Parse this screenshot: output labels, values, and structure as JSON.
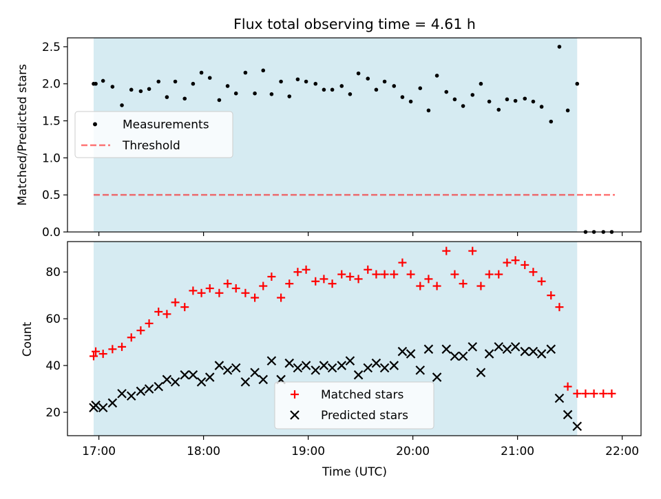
{
  "chart_data": [
    {
      "type": "scatter",
      "title": "Flux total observing time = 4.61 h",
      "xlabel": "",
      "ylabel": "Matched/Predicted stars",
      "ylim": [
        0,
        2.62
      ],
      "yticks": [
        0.0,
        0.5,
        1.0,
        1.5,
        2.0,
        2.5
      ],
      "ytick_labels": [
        "0.0",
        "0.5",
        "1.0",
        "1.5",
        "2.0",
        "2.5"
      ],
      "legend_position": "center-left",
      "shaded_interval": {
        "start_hour": 16.95,
        "end_hour": 21.57,
        "color": "#add8e6"
      },
      "threshold": {
        "name": "Threshold",
        "value": 0.5,
        "x_start_hour": 16.95,
        "x_end_hour": 21.93,
        "color": "#ff0000",
        "style": "dashed"
      },
      "series": [
        {
          "name": "Measurements",
          "color": "#000000",
          "marker": "dot",
          "x": [
            16.95,
            16.97,
            17.04,
            17.13,
            17.22,
            17.31,
            17.4,
            17.48,
            17.57,
            17.65,
            17.73,
            17.82,
            17.9,
            17.98,
            18.06,
            18.15,
            18.23,
            18.31,
            18.4,
            18.49,
            18.57,
            18.65,
            18.74,
            18.82,
            18.9,
            18.98,
            19.07,
            19.15,
            19.23,
            19.32,
            19.4,
            19.48,
            19.57,
            19.65,
            19.73,
            19.82,
            19.9,
            19.98,
            20.07,
            20.15,
            20.23,
            20.32,
            20.4,
            20.48,
            20.57,
            20.65,
            20.73,
            20.82,
            20.9,
            20.98,
            21.07,
            21.15,
            21.23,
            21.32,
            21.4,
            21.48,
            21.57,
            21.65,
            21.73,
            21.82,
            21.9
          ],
          "y": [
            2.0,
            2.0,
            2.04,
            1.96,
            1.71,
            1.92,
            1.9,
            1.93,
            2.03,
            1.82,
            2.03,
            1.8,
            2.0,
            2.15,
            2.08,
            1.78,
            1.97,
            1.87,
            2.15,
            1.87,
            2.18,
            1.86,
            2.03,
            1.83,
            2.06,
            2.03,
            2.0,
            1.92,
            1.92,
            1.97,
            1.86,
            2.14,
            2.07,
            1.92,
            2.03,
            1.97,
            1.82,
            1.76,
            1.94,
            1.64,
            2.11,
            1.89,
            1.79,
            1.7,
            1.85,
            2.0,
            1.76,
            1.65,
            1.79,
            1.77,
            1.8,
            1.76,
            1.69,
            1.49,
            2.5,
            1.64,
            2.0,
            0.0,
            0.0,
            0.0,
            0.0
          ]
        }
      ]
    },
    {
      "type": "scatter",
      "title": "",
      "xlabel": "Time (UTC)",
      "ylabel": "Count",
      "xlim_hours": [
        16.7,
        22.18
      ],
      "ylim": [
        10,
        93
      ],
      "xticks": [
        17,
        18,
        19,
        20,
        21,
        22
      ],
      "xtick_labels": [
        "17:00",
        "18:00",
        "19:00",
        "20:00",
        "21:00",
        "22:00"
      ],
      "yticks": [
        20,
        40,
        60,
        80
      ],
      "ytick_labels": [
        "20",
        "40",
        "60",
        "80"
      ],
      "legend_position": "bottom-center",
      "shaded_interval": {
        "start_hour": 16.95,
        "end_hour": 21.57,
        "color": "#add8e6"
      },
      "series": [
        {
          "name": "Matched stars",
          "color": "#ff0000",
          "marker": "plus",
          "x": [
            16.95,
            16.97,
            17.04,
            17.13,
            17.22,
            17.31,
            17.4,
            17.48,
            17.57,
            17.65,
            17.73,
            17.82,
            17.9,
            17.98,
            18.06,
            18.15,
            18.23,
            18.31,
            18.4,
            18.49,
            18.57,
            18.65,
            18.74,
            18.82,
            18.9,
            18.98,
            19.07,
            19.15,
            19.23,
            19.32,
            19.4,
            19.48,
            19.57,
            19.65,
            19.73,
            19.82,
            19.9,
            19.98,
            20.07,
            20.15,
            20.23,
            20.32,
            20.4,
            20.48,
            20.57,
            20.65,
            20.73,
            20.82,
            20.9,
            20.98,
            21.07,
            21.15,
            21.23,
            21.32,
            21.4,
            21.48,
            21.57,
            21.65,
            21.73,
            21.82,
            21.9
          ],
          "y": [
            44,
            46,
            45,
            47,
            48,
            52,
            55,
            58,
            63,
            62,
            67,
            65,
            72,
            71,
            73,
            71,
            75,
            73,
            71,
            69,
            74,
            78,
            69,
            75,
            80,
            81,
            76,
            77,
            75,
            79,
            78,
            77,
            81,
            79,
            79,
            79,
            84,
            79,
            74,
            77,
            74,
            89,
            79,
            75,
            89,
            74,
            79,
            79,
            84,
            85,
            83,
            80,
            76,
            70,
            65,
            31,
            28,
            28,
            28,
            28,
            28
          ]
        },
        {
          "name": "Predicted stars",
          "color": "#000000",
          "marker": "x",
          "x": [
            16.95,
            16.97,
            17.04,
            17.13,
            17.22,
            17.31,
            17.4,
            17.48,
            17.57,
            17.65,
            17.73,
            17.82,
            17.9,
            17.98,
            18.06,
            18.15,
            18.23,
            18.31,
            18.4,
            18.49,
            18.57,
            18.65,
            18.74,
            18.82,
            18.9,
            18.98,
            19.07,
            19.15,
            19.23,
            19.32,
            19.4,
            19.48,
            19.57,
            19.65,
            19.73,
            19.82,
            19.9,
            19.98,
            20.07,
            20.15,
            20.23,
            20.32,
            20.4,
            20.48,
            20.57,
            20.65,
            20.73,
            20.82,
            20.9,
            20.98,
            21.07,
            21.15,
            21.23,
            21.32,
            21.4,
            21.48,
            21.57
          ],
          "y": [
            22,
            23,
            22,
            24,
            28,
            27,
            29,
            30,
            31,
            34,
            33,
            36,
            36,
            33,
            35,
            40,
            38,
            39,
            33,
            37,
            34,
            42,
            34,
            41,
            39,
            40,
            38,
            40,
            39,
            40,
            42,
            36,
            39,
            41,
            39,
            40,
            46,
            45,
            38,
            47,
            35,
            47,
            44,
            44,
            48,
            37,
            45,
            48,
            47,
            48,
            46,
            46,
            45,
            47,
            26,
            19,
            14
          ]
        }
      ]
    }
  ]
}
